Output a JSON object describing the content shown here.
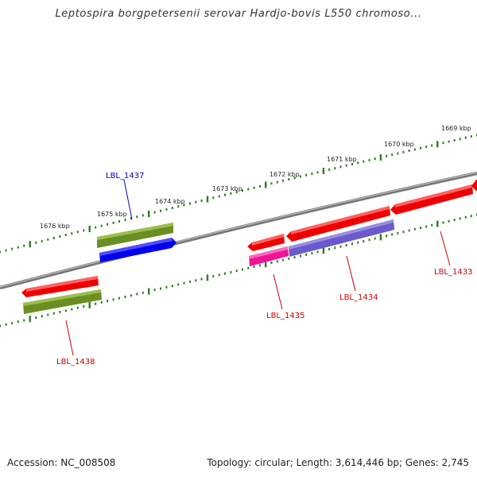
{
  "title": "Leptospira borgpetersenii serovar Hardjo-bovis L550 chromoso...",
  "footer": {
    "accession": "Accession: NC_008508",
    "stats": "Topology: circular; Length: 3,614,446 bp; Genes: 2,745"
  },
  "colors": {
    "backbone": "#7a7a7a",
    "tick": "#2e7d1e",
    "red": "#ee0000",
    "olive": "#6b8e23",
    "blue": "#0000ee",
    "pink": "#ee1493",
    "slate": "#6a5acd",
    "label_red": "#cc0000",
    "label_blue": "#0000bb"
  },
  "ticks": [
    {
      "label": "1676 kbp"
    },
    {
      "label": "1675 kbp"
    },
    {
      "label": "1674 kbp"
    },
    {
      "label": "1673 kbp"
    },
    {
      "label": "1672 kbp"
    },
    {
      "label": "1671 kbp"
    },
    {
      "label": "1670 kbp"
    },
    {
      "label": "1669 kbp"
    }
  ],
  "gene_labels": {
    "g1437": "LBL_1437",
    "g1438": "LBL_1438",
    "g1435": "LBL_1435",
    "g1434": "LBL_1434",
    "g1433": "LBL_1433"
  }
}
